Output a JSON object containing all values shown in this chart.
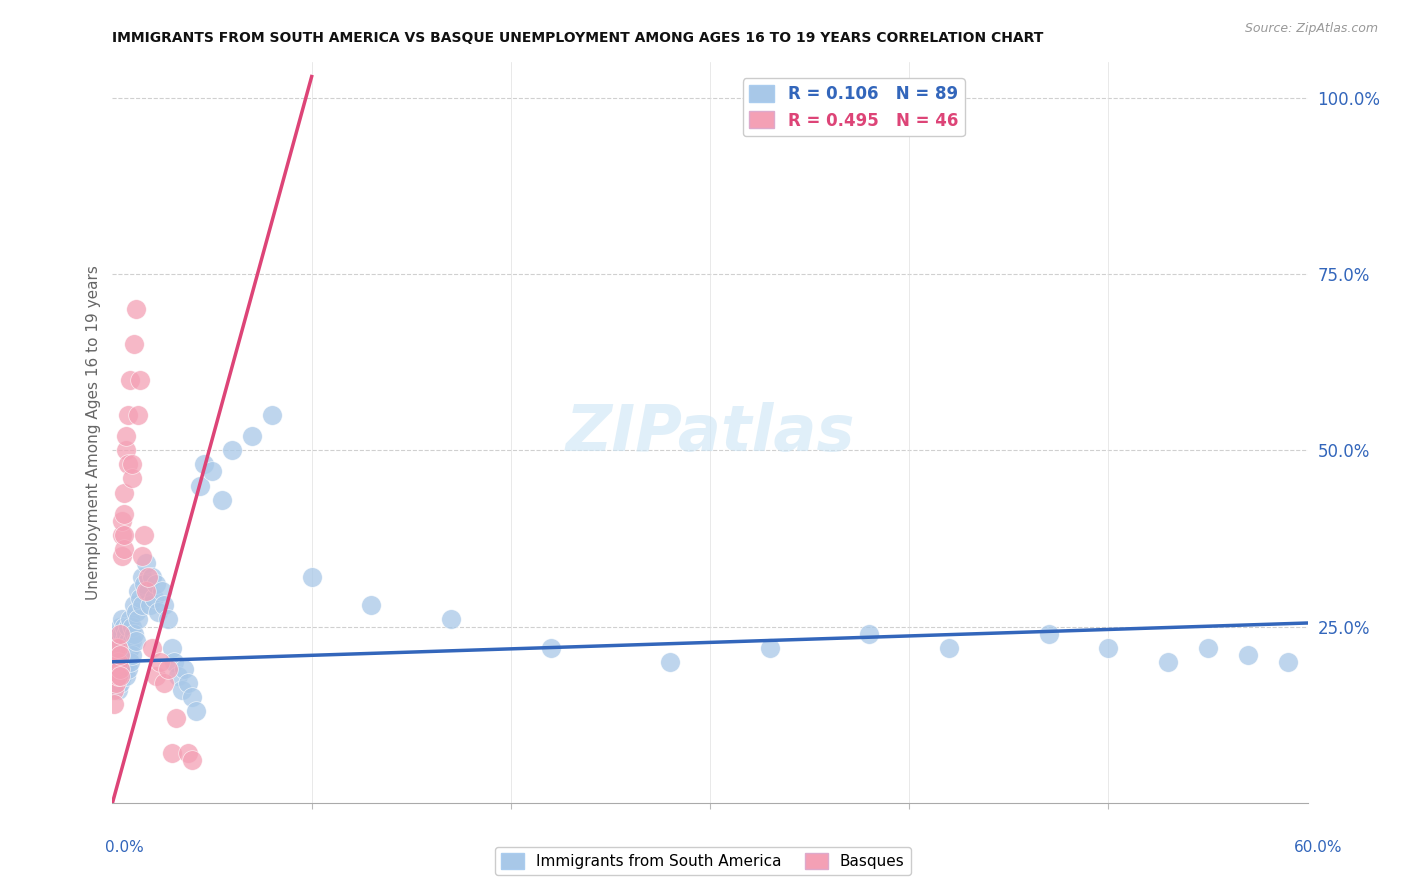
{
  "title": "IMMIGRANTS FROM SOUTH AMERICA VS BASQUE UNEMPLOYMENT AMONG AGES 16 TO 19 YEARS CORRELATION CHART",
  "source": "Source: ZipAtlas.com",
  "ylabel": "Unemployment Among Ages 16 to 19 years",
  "right_yticks": [
    "100.0%",
    "75.0%",
    "50.0%",
    "25.0%"
  ],
  "right_ytick_vals": [
    1.0,
    0.75,
    0.5,
    0.25
  ],
  "blue_color": "#a8c8e8",
  "pink_color": "#f4a0b5",
  "blue_line_color": "#3366bb",
  "pink_line_color": "#dd4477",
  "blue_R": 0.106,
  "blue_N": 89,
  "pink_R": 0.495,
  "pink_N": 46,
  "blue_scatter_x": [
    0.001,
    0.001,
    0.001,
    0.002,
    0.002,
    0.002,
    0.002,
    0.003,
    0.003,
    0.003,
    0.003,
    0.003,
    0.004,
    0.004,
    0.004,
    0.004,
    0.004,
    0.005,
    0.005,
    0.005,
    0.005,
    0.005,
    0.006,
    0.006,
    0.006,
    0.006,
    0.007,
    0.007,
    0.007,
    0.007,
    0.008,
    0.008,
    0.008,
    0.008,
    0.009,
    0.009,
    0.009,
    0.01,
    0.01,
    0.01,
    0.011,
    0.011,
    0.012,
    0.012,
    0.013,
    0.013,
    0.014,
    0.015,
    0.015,
    0.016,
    0.017,
    0.018,
    0.019,
    0.02,
    0.021,
    0.022,
    0.023,
    0.025,
    0.026,
    0.028,
    0.03,
    0.031,
    0.033,
    0.035,
    0.036,
    0.038,
    0.04,
    0.042,
    0.044,
    0.046,
    0.05,
    0.055,
    0.06,
    0.07,
    0.08,
    0.1,
    0.13,
    0.17,
    0.22,
    0.28,
    0.33,
    0.38,
    0.42,
    0.47,
    0.5,
    0.53,
    0.55,
    0.57,
    0.59
  ],
  "blue_scatter_y": [
    0.22,
    0.2,
    0.18,
    0.21,
    0.19,
    0.23,
    0.17,
    0.2,
    0.22,
    0.18,
    0.24,
    0.16,
    0.21,
    0.23,
    0.19,
    0.25,
    0.17,
    0.2,
    0.22,
    0.18,
    0.24,
    0.26,
    0.21,
    0.19,
    0.23,
    0.25,
    0.2,
    0.22,
    0.18,
    0.24,
    0.21,
    0.23,
    0.19,
    0.25,
    0.22,
    0.2,
    0.26,
    0.23,
    0.21,
    0.25,
    0.28,
    0.24,
    0.27,
    0.23,
    0.3,
    0.26,
    0.29,
    0.32,
    0.28,
    0.31,
    0.34,
    0.3,
    0.28,
    0.32,
    0.29,
    0.31,
    0.27,
    0.3,
    0.28,
    0.26,
    0.22,
    0.2,
    0.18,
    0.16,
    0.19,
    0.17,
    0.15,
    0.13,
    0.45,
    0.48,
    0.47,
    0.43,
    0.5,
    0.52,
    0.55,
    0.32,
    0.28,
    0.26,
    0.22,
    0.2,
    0.22,
    0.24,
    0.22,
    0.24,
    0.22,
    0.2,
    0.22,
    0.21,
    0.2
  ],
  "pink_scatter_x": [
    0.001,
    0.001,
    0.001,
    0.001,
    0.002,
    0.002,
    0.002,
    0.002,
    0.003,
    0.003,
    0.003,
    0.004,
    0.004,
    0.004,
    0.004,
    0.005,
    0.005,
    0.005,
    0.006,
    0.006,
    0.006,
    0.006,
    0.007,
    0.007,
    0.008,
    0.008,
    0.009,
    0.01,
    0.01,
    0.011,
    0.012,
    0.013,
    0.014,
    0.015,
    0.016,
    0.017,
    0.018,
    0.02,
    0.022,
    0.024,
    0.026,
    0.028,
    0.03,
    0.032,
    0.038,
    0.04
  ],
  "pink_scatter_y": [
    0.2,
    0.18,
    0.16,
    0.14,
    0.19,
    0.17,
    0.2,
    0.22,
    0.2,
    0.18,
    0.22,
    0.19,
    0.21,
    0.18,
    0.24,
    0.35,
    0.38,
    0.4,
    0.36,
    0.38,
    0.41,
    0.44,
    0.5,
    0.52,
    0.55,
    0.48,
    0.6,
    0.46,
    0.48,
    0.65,
    0.7,
    0.55,
    0.6,
    0.35,
    0.38,
    0.3,
    0.32,
    0.22,
    0.18,
    0.2,
    0.17,
    0.19,
    0.07,
    0.12,
    0.07,
    0.06
  ],
  "xlim": [
    0.0,
    0.6
  ],
  "ylim": [
    0.0,
    1.05
  ],
  "blue_trend_x": [
    0.0,
    0.6
  ],
  "blue_trend_y": [
    0.2,
    0.255
  ],
  "pink_trend_x": [
    0.0,
    0.1
  ],
  "pink_trend_y": [
    0.0,
    1.03
  ]
}
